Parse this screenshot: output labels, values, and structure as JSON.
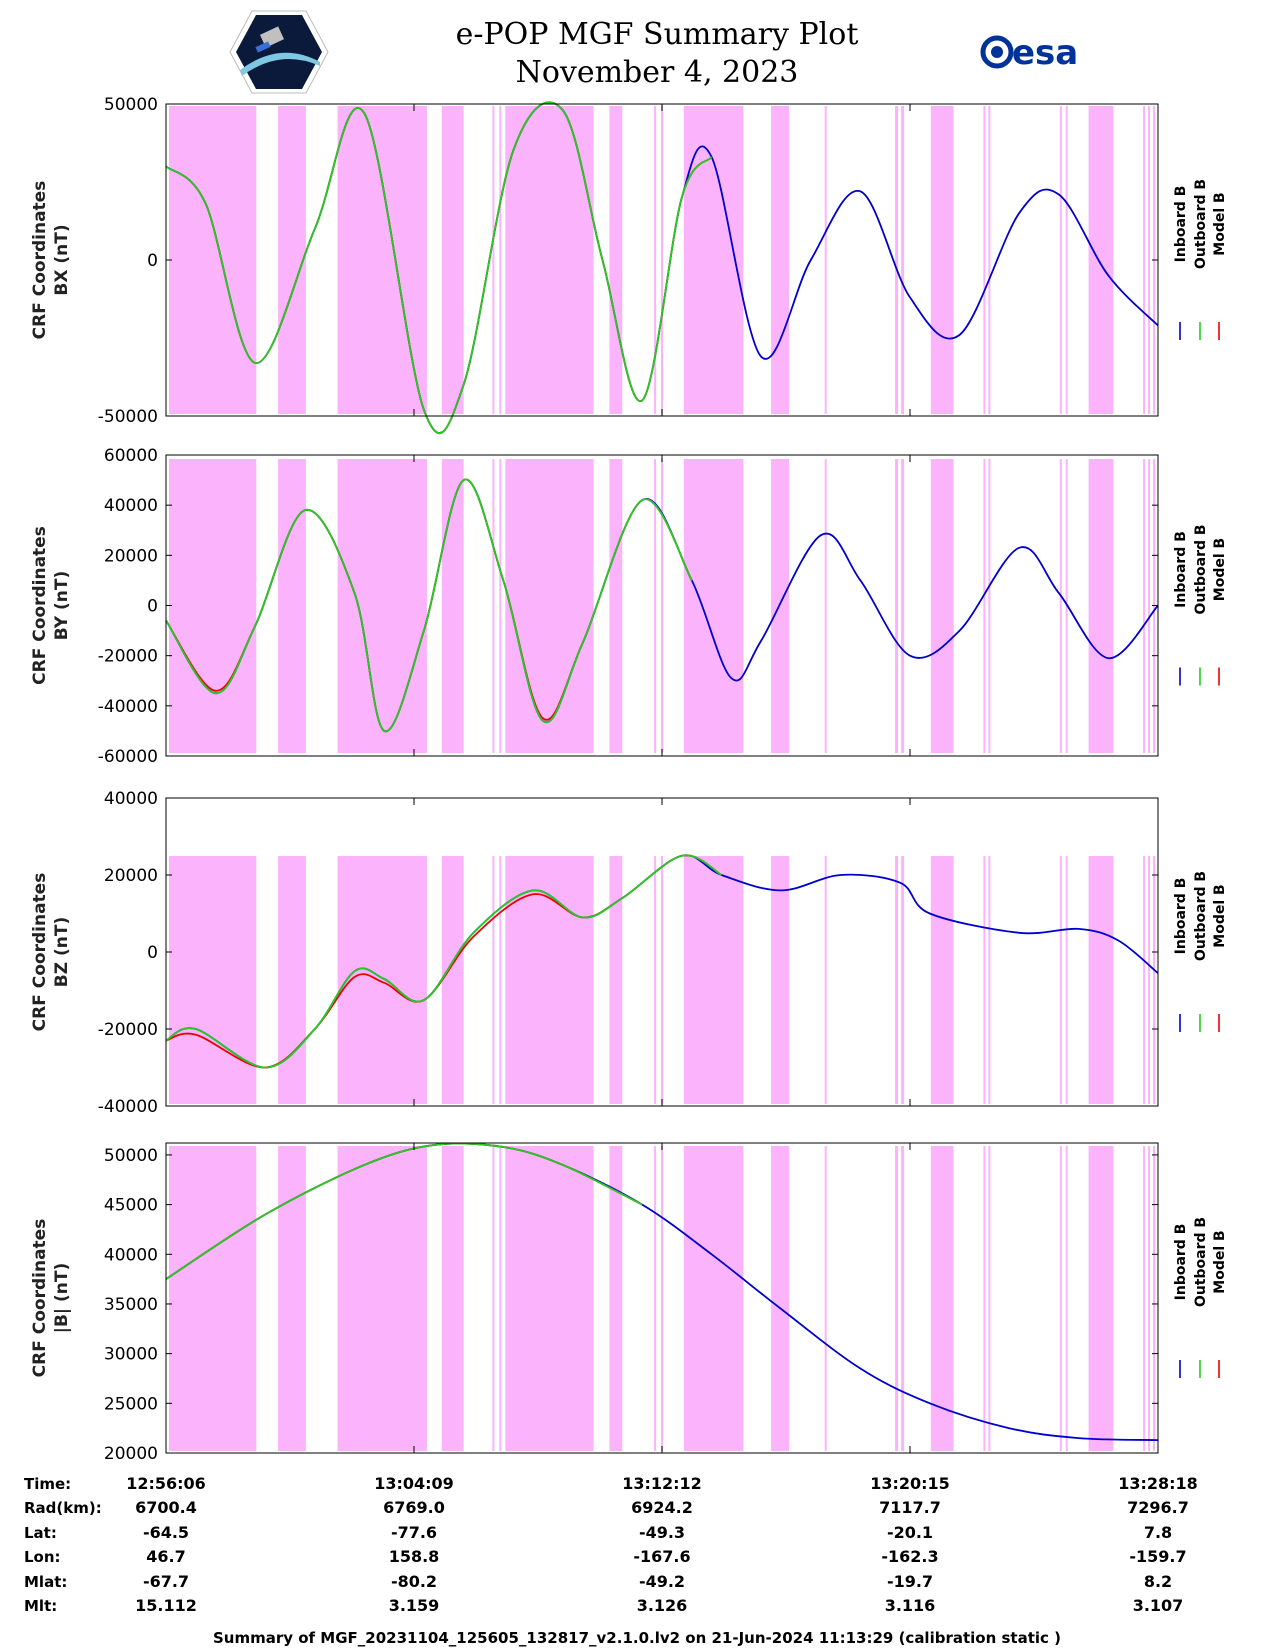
{
  "header": {
    "title_line1": "e-POP MGF Summary Plot",
    "title_line2": "November 4, 2023",
    "left_logo": "cassiope-mission-logo",
    "right_logo_text": "esa"
  },
  "colors": {
    "inboard": "#0000cc",
    "outboard": "#22cc22",
    "model": "#ee0000",
    "shade": "#fbb4fb"
  },
  "legend": {
    "items": [
      "Inboard B",
      "Outboard B",
      "Model B"
    ]
  },
  "shade_intervals_frac": [
    [
      0.003,
      0.091
    ],
    [
      0.113,
      0.141
    ],
    [
      0.173,
      0.263
    ],
    [
      0.278,
      0.3
    ],
    [
      0.329,
      0.331
    ],
    [
      0.336,
      0.338
    ],
    [
      0.342,
      0.431
    ],
    [
      0.447,
      0.46
    ],
    [
      0.492,
      0.494
    ],
    [
      0.499,
      0.501
    ],
    [
      0.522,
      0.582
    ],
    [
      0.61,
      0.628
    ],
    [
      0.664,
      0.666
    ],
    [
      0.735,
      0.738
    ],
    [
      0.741,
      0.744
    ],
    [
      0.771,
      0.794
    ],
    [
      0.824,
      0.826
    ],
    [
      0.829,
      0.831
    ],
    [
      0.901,
      0.903
    ],
    [
      0.907,
      0.909
    ],
    [
      0.93,
      0.955
    ],
    [
      0.985,
      0.987
    ],
    [
      0.99,
      0.992
    ],
    [
      0.995,
      0.997
    ]
  ],
  "outboard_end_frac": 0.525,
  "chart_data": [
    {
      "type": "line",
      "ylabel_line1": "CRF Coordinates",
      "ylabel_line2": "BX (nT)",
      "ylim": [
        -50000,
        50000
      ],
      "yticks": [
        50000,
        0,
        -50000
      ],
      "yticklabels": [
        "50000",
        "0",
        "-50000"
      ],
      "x_frac": [
        0,
        0.04,
        0.09,
        0.15,
        0.2,
        0.26,
        0.3,
        0.35,
        0.4,
        0.44,
        0.48,
        0.52,
        0.55,
        0.6,
        0.65,
        0.7,
        0.75,
        0.8,
        0.86,
        0.9,
        0.95,
        1.0
      ],
      "series": [
        {
          "name": "Inboard B",
          "values": [
            30000,
            18000,
            -33000,
            10000,
            47000,
            -48000,
            -40000,
            35000,
            48000,
            0,
            -45000,
            20000,
            33000,
            -31000,
            0,
            22000,
            -12000,
            -24000,
            15000,
            21000,
            -5000,
            -21000
          ]
        },
        {
          "name": "Outboard B",
          "values": [
            30000,
            18000,
            -33000,
            10000,
            47000,
            -48000,
            -40000,
            35000,
            48000,
            0,
            -45000,
            20000,
            33000
          ]
        },
        {
          "name": "Model B",
          "values": [
            30000,
            18000,
            -33000,
            10000,
            47000,
            -48000,
            -40000,
            35000,
            48000,
            0,
            -45000,
            20000,
            33000
          ]
        }
      ]
    },
    {
      "type": "line",
      "ylabel_line1": "CRF Coordinates",
      "ylabel_line2": "BY (nT)",
      "ylim": [
        -60000,
        60000
      ],
      "yticks": [
        60000,
        40000,
        20000,
        0,
        -20000,
        -40000,
        -60000
      ],
      "yticklabels": [
        "60000",
        "40000",
        "20000",
        "0",
        "-20000",
        "-40000",
        "-60000"
      ],
      "x_frac": [
        0,
        0.05,
        0.09,
        0.14,
        0.19,
        0.22,
        0.26,
        0.3,
        0.34,
        0.38,
        0.42,
        0.48,
        0.53,
        0.57,
        0.6,
        0.66,
        0.7,
        0.75,
        0.8,
        0.86,
        0.9,
        0.95,
        1.0
      ],
      "series": [
        {
          "name": "Inboard B",
          "values": [
            -6000,
            -35000,
            -8000,
            38000,
            5000,
            -50000,
            -10000,
            50000,
            10000,
            -46000,
            -15000,
            42000,
            10000,
            -29000,
            -14000,
            28000,
            10000,
            -20000,
            -10000,
            23000,
            5000,
            -21000,
            0
          ]
        },
        {
          "name": "Outboard B",
          "values": [
            -6000,
            -35000,
            -8000,
            38000,
            5000,
            -50000,
            -10000,
            50000,
            10000,
            -46000,
            -15000,
            42000,
            10000
          ]
        },
        {
          "name": "Model B",
          "values": [
            -6000,
            -34000,
            -8000,
            38000,
            5000,
            -50000,
            -10000,
            50000,
            10000,
            -45000,
            -15000,
            42000,
            10000
          ]
        }
      ]
    },
    {
      "type": "line",
      "ylabel_line1": "CRF Coordinates",
      "ylabel_line2": "BZ (nT)",
      "ylim": [
        -40000,
        40000
      ],
      "yticks": [
        40000,
        20000,
        0,
        -20000,
        -40000
      ],
      "yticklabels": [
        "40000",
        "20000",
        "0",
        "-20000",
        "-40000"
      ],
      "x_frac": [
        0,
        0.03,
        0.1,
        0.15,
        0.19,
        0.22,
        0.26,
        0.31,
        0.37,
        0.42,
        0.46,
        0.52,
        0.56,
        0.62,
        0.68,
        0.74,
        0.77,
        0.86,
        0.92,
        0.96,
        1.0
      ],
      "series": [
        {
          "name": "Inboard B",
          "values": [
            -23000,
            -20000,
            -30000,
            -20000,
            -5000,
            -7000,
            -12500,
            5000,
            16000,
            9000,
            14000,
            25000,
            20000,
            16000,
            20000,
            18000,
            10000,
            5000,
            6000,
            3000,
            -5500
          ]
        },
        {
          "name": "Outboard B",
          "values": [
            -23000,
            -20000,
            -30000,
            -20000,
            -5000,
            -7000,
            -12500,
            5000,
            16000,
            9000,
            14000,
            25000,
            20000
          ]
        },
        {
          "name": "Model B",
          "values": [
            -23000,
            -21500,
            -30000,
            -20000,
            -6500,
            -8000,
            -12500,
            4000,
            15000,
            9000,
            14000,
            25000,
            20000
          ]
        }
      ]
    },
    {
      "type": "line",
      "ylabel_line1": "CRF Coordinates",
      "ylabel_line2": "|B| (nT)",
      "ylim": [
        20000,
        51200
      ],
      "yticks": [
        50000,
        45000,
        40000,
        35000,
        30000,
        25000,
        20000
      ],
      "yticklabels": [
        "50000",
        "45000",
        "40000",
        "35000",
        "30000",
        "25000",
        "20000"
      ],
      "x_frac": [
        0,
        0.1,
        0.2,
        0.27,
        0.34,
        0.4,
        0.48,
        0.55,
        0.62,
        0.7,
        0.77,
        0.85,
        0.92,
        1.0
      ],
      "series": [
        {
          "name": "Inboard B",
          "values": [
            37500,
            44000,
            49000,
            51000,
            50800,
            49000,
            45000,
            40000,
            34500,
            28500,
            25000,
            22500,
            21500,
            21300
          ]
        },
        {
          "name": "Outboard B",
          "values": [
            37500,
            44000,
            49000,
            51000,
            50800,
            49000,
            45000
          ]
        },
        {
          "name": "Model B",
          "values": [
            37500,
            44000,
            49000,
            51000,
            50800,
            49000,
            45000
          ]
        }
      ]
    }
  ],
  "xaxis": {
    "tick_frac": [
      0,
      0.25,
      0.5,
      0.75,
      1.0
    ]
  },
  "table": {
    "row_labels": [
      "Time:",
      "Rad(km):",
      "Lat:",
      "Lon:",
      "Mlat:",
      "Mlt:"
    ],
    "columns": [
      [
        "12:56:06",
        "6700.4",
        "-64.5",
        "46.7",
        "-67.7",
        "15.112"
      ],
      [
        "13:04:09",
        "6769.0",
        "-77.6",
        "158.8",
        "-80.2",
        "3.159"
      ],
      [
        "13:12:12",
        "6924.2",
        "-49.3",
        "-167.6",
        "-49.2",
        "3.126"
      ],
      [
        "13:20:15",
        "7117.7",
        "-20.1",
        "-162.3",
        "-19.7",
        "3.116"
      ],
      [
        "13:28:18",
        "7296.7",
        "7.8",
        "-159.7",
        "8.2",
        "3.107"
      ]
    ]
  },
  "footer": "Summary of MGF_20231104_125605_132817_v2.1.0.lv2 on 21-Jun-2024 11:13:29 (calibration static )"
}
